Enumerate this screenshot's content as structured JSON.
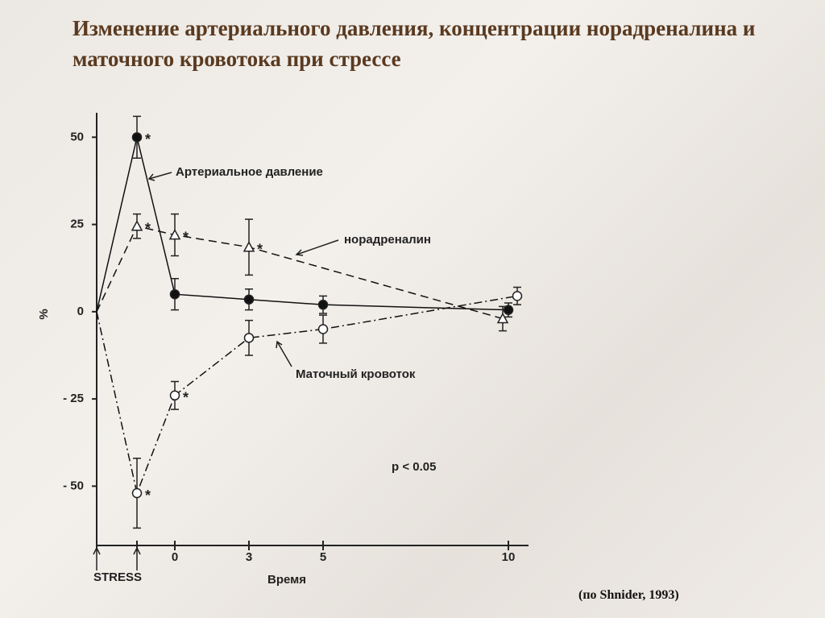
{
  "title": "Изменение артериального давления, концентрации норадреналина и маточного кровотока при стрессе",
  "source": "(по Shnider, 1993)",
  "chart_data": {
    "type": "line",
    "ylabel": "%",
    "xlabel": "Время",
    "stress_label": "STRESS",
    "note": "p < 0.05",
    "categories": [
      null,
      null,
      "0",
      "3",
      "5",
      "10"
    ],
    "ylim": [
      -67,
      57
    ],
    "yticks": [
      50,
      25,
      0,
      {
        "value": -25,
        "label": "- 25"
      },
      {
        "value": -50,
        "label": "- 50"
      }
    ],
    "series": [
      {
        "name": "Артериальное давление",
        "color": "#111111",
        "marker": "filled-circle",
        "dash": "solid",
        "values": [
          0,
          50,
          5,
          3.5,
          2,
          0.5
        ],
        "errors": [
          null,
          6,
          4.5,
          3,
          2.5,
          2
        ],
        "significance": [
          null,
          "*",
          null,
          null,
          null,
          null
        ]
      },
      {
        "name": "норадреналин",
        "color": "#111111",
        "marker": "triangle",
        "dash": "dashed",
        "values": [
          0,
          24.5,
          22,
          18.5,
          null,
          -2
        ],
        "errors": [
          null,
          3.5,
          6,
          8,
          null,
          3.5
        ],
        "significance": [
          null,
          "*",
          "*",
          "*",
          null,
          null
        ]
      },
      {
        "name": "Маточный кровоток",
        "color": "#111111",
        "marker": "open-circle",
        "dash": "dashdot",
        "values": [
          0,
          -52,
          -24,
          -7.5,
          -5,
          4.5
        ],
        "errors": [
          null,
          10,
          4,
          5,
          4,
          2.5
        ],
        "significance": [
          null,
          "*",
          "*",
          null,
          null,
          null
        ]
      }
    ]
  }
}
